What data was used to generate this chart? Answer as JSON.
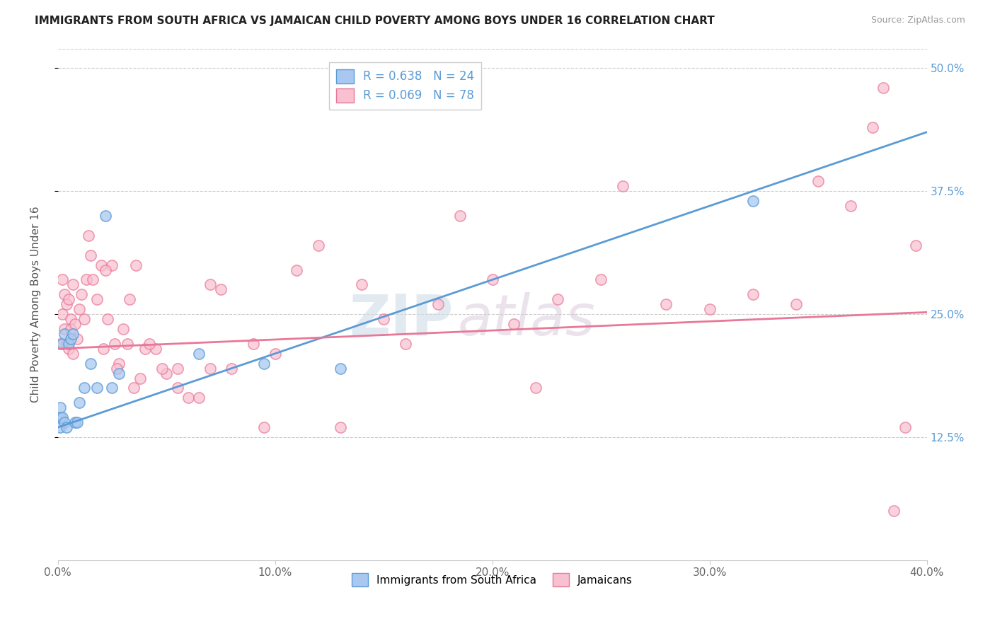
{
  "title": "IMMIGRANTS FROM SOUTH AFRICA VS JAMAICAN CHILD POVERTY AMONG BOYS UNDER 16 CORRELATION CHART",
  "source": "Source: ZipAtlas.com",
  "ylabel": "Child Poverty Among Boys Under 16",
  "xlim": [
    0.0,
    0.4
  ],
  "ylim": [
    0.0,
    0.52
  ],
  "xtick_labels": [
    "0.0%",
    "10.0%",
    "20.0%",
    "30.0%",
    "40.0%"
  ],
  "xtick_vals": [
    0.0,
    0.1,
    0.2,
    0.3,
    0.4
  ],
  "ytick_labels": [
    "12.5%",
    "25.0%",
    "37.5%",
    "50.0%"
  ],
  "ytick_vals": [
    0.125,
    0.25,
    0.375,
    0.5
  ],
  "legend_label1": "R = 0.638   N = 24",
  "legend_label2": "R = 0.069   N = 78",
  "legend_series1": "Immigrants from South Africa",
  "legend_series2": "Jamaicans",
  "color_blue_fill": "#A8C8F0",
  "color_blue_edge": "#5B9BD5",
  "color_pink_fill": "#F8C0D0",
  "color_pink_edge": "#E87898",
  "watermark_zip": "ZIP",
  "watermark_atlas": "atlas",
  "blue_trendline_x": [
    0.0,
    0.4
  ],
  "blue_trendline_y": [
    0.135,
    0.435
  ],
  "pink_trendline_x": [
    0.0,
    0.4
  ],
  "pink_trendline_y": [
    0.215,
    0.252
  ],
  "blue_scatter_x": [
    0.001,
    0.001,
    0.001,
    0.002,
    0.002,
    0.003,
    0.003,
    0.004,
    0.005,
    0.006,
    0.007,
    0.008,
    0.009,
    0.01,
    0.012,
    0.015,
    0.018,
    0.022,
    0.025,
    0.028,
    0.065,
    0.095,
    0.13,
    0.32
  ],
  "blue_scatter_y": [
    0.135,
    0.145,
    0.155,
    0.145,
    0.22,
    0.23,
    0.14,
    0.135,
    0.22,
    0.225,
    0.23,
    0.14,
    0.14,
    0.16,
    0.175,
    0.2,
    0.175,
    0.35,
    0.175,
    0.19,
    0.21,
    0.2,
    0.195,
    0.365
  ],
  "pink_scatter_x": [
    0.001,
    0.002,
    0.002,
    0.003,
    0.003,
    0.004,
    0.004,
    0.005,
    0.005,
    0.006,
    0.006,
    0.007,
    0.007,
    0.008,
    0.009,
    0.01,
    0.011,
    0.012,
    0.013,
    0.014,
    0.015,
    0.016,
    0.018,
    0.02,
    0.021,
    0.023,
    0.025,
    0.026,
    0.028,
    0.03,
    0.033,
    0.035,
    0.038,
    0.04,
    0.045,
    0.05,
    0.055,
    0.06,
    0.065,
    0.07,
    0.075,
    0.08,
    0.09,
    0.095,
    0.1,
    0.11,
    0.12,
    0.13,
    0.14,
    0.15,
    0.16,
    0.175,
    0.185,
    0.2,
    0.21,
    0.22,
    0.23,
    0.25,
    0.26,
    0.28,
    0.3,
    0.32,
    0.34,
    0.35,
    0.365,
    0.375,
    0.38,
    0.385,
    0.39,
    0.395,
    0.048,
    0.022,
    0.027,
    0.032,
    0.036,
    0.042,
    0.055,
    0.07
  ],
  "pink_scatter_y": [
    0.22,
    0.25,
    0.285,
    0.235,
    0.27,
    0.22,
    0.26,
    0.215,
    0.265,
    0.235,
    0.245,
    0.21,
    0.28,
    0.24,
    0.225,
    0.255,
    0.27,
    0.245,
    0.285,
    0.33,
    0.31,
    0.285,
    0.265,
    0.3,
    0.215,
    0.245,
    0.3,
    0.22,
    0.2,
    0.235,
    0.265,
    0.175,
    0.185,
    0.215,
    0.215,
    0.19,
    0.175,
    0.165,
    0.165,
    0.195,
    0.275,
    0.195,
    0.22,
    0.135,
    0.21,
    0.295,
    0.32,
    0.135,
    0.28,
    0.245,
    0.22,
    0.26,
    0.35,
    0.285,
    0.24,
    0.175,
    0.265,
    0.285,
    0.38,
    0.26,
    0.255,
    0.27,
    0.26,
    0.385,
    0.36,
    0.44,
    0.48,
    0.05,
    0.135,
    0.32,
    0.195,
    0.295,
    0.195,
    0.22,
    0.3,
    0.22,
    0.195,
    0.28
  ]
}
